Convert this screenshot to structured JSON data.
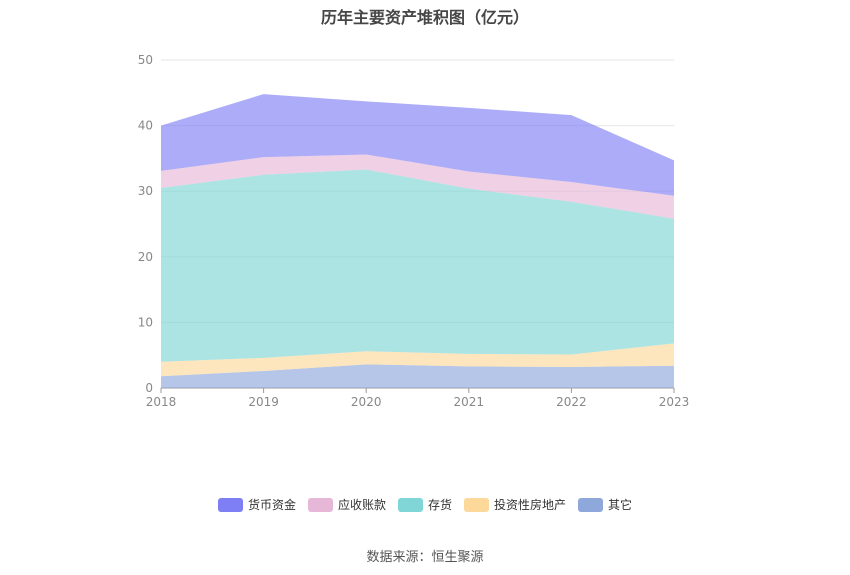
{
  "chart_data": {
    "type": "area",
    "title": "历年主要资产堆积图（亿元）",
    "stacked": true,
    "x": [
      "2018",
      "2019",
      "2020",
      "2021",
      "2022",
      "2023"
    ],
    "ylim": [
      0,
      50
    ],
    "yticks": [
      0,
      10,
      20,
      30,
      40,
      50
    ],
    "grid": true,
    "legend_position": "bottom",
    "series": [
      {
        "name": "其它",
        "color": "#8fa8dc",
        "values": [
          1.8,
          2.6,
          3.6,
          3.3,
          3.2,
          3.4
        ]
      },
      {
        "name": "投资性房地产",
        "color": "#fcd89a",
        "values": [
          2.2,
          2.0,
          2.0,
          1.9,
          1.9,
          3.4
        ]
      },
      {
        "name": "存货",
        "color": "#80d6d6",
        "values": [
          26.5,
          27.9,
          27.7,
          25.2,
          23.3,
          19.0
        ]
      },
      {
        "name": "应收账款",
        "color": "#e7b7d7",
        "values": [
          2.6,
          2.7,
          2.3,
          2.6,
          3.0,
          3.5
        ]
      },
      {
        "name": "货币资金",
        "color": "#7f7ff5",
        "values": [
          6.9,
          9.6,
          8.1,
          9.7,
          10.2,
          5.4
        ]
      }
    ]
  },
  "legend_order": [
    "货币资金",
    "应收账款",
    "存货",
    "投资性房地产",
    "其它"
  ],
  "source": "数据来源：恒生聚源"
}
